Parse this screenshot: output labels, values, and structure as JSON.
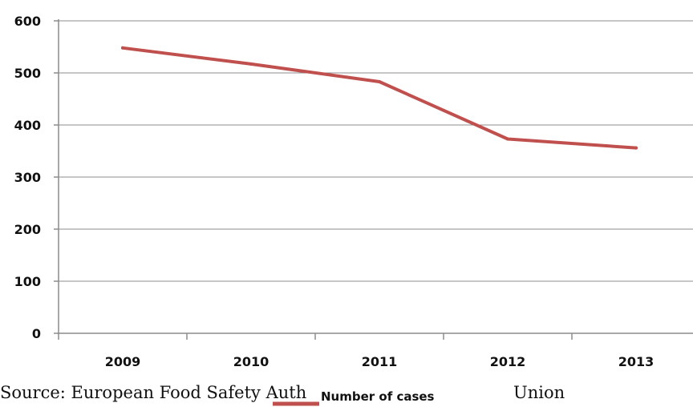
{
  "chart_data": {
    "type": "line",
    "categories": [
      "2009",
      "2010",
      "2011",
      "2012",
      "2013"
    ],
    "series": [
      {
        "name": "Number of cases",
        "values": [
          548,
          517,
          483,
          373,
          356
        ]
      }
    ],
    "y_ticks": [
      "0",
      "100",
      "200",
      "300",
      "400",
      "500",
      "600"
    ],
    "ylim": [
      0,
      600
    ],
    "grid": true,
    "legend": "bottom",
    "series_color": "#c0504d"
  },
  "source": {
    "fragments": [
      "Source: European Food Safety Auth",
      "Union"
    ]
  }
}
